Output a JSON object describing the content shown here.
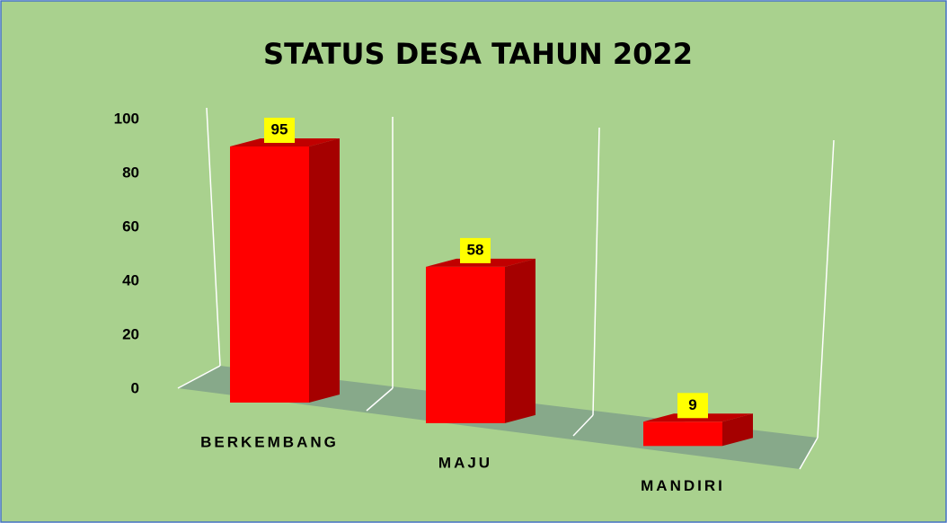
{
  "chart_data": {
    "type": "bar",
    "title": "STATUS DESA TAHUN 2022",
    "categories": [
      "BERKEMBANG",
      "MAJU",
      "MANDIRI"
    ],
    "values": [
      95,
      58,
      9
    ],
    "color": "#ff0000",
    "ylim": [
      0,
      100
    ],
    "yticks": [
      0,
      20,
      40,
      60,
      80,
      100
    ],
    "grid": false
  }
}
